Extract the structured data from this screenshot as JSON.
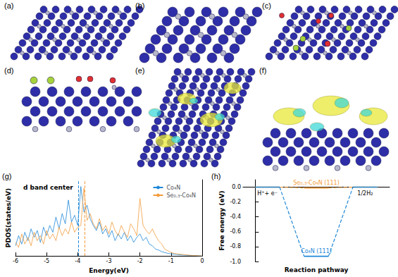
{
  "panels": [
    "(a)",
    "(b)",
    "(c)",
    "(d)",
    "(e)",
    "(f)",
    "(g)",
    "(h)"
  ],
  "chart_data": [
    {
      "type": "line",
      "title": "d band center",
      "xlabel": "Energy(eV)",
      "ylabel": "PDOS(states/eV)",
      "x": [
        -6.0,
        -5.9,
        -5.8,
        -5.7,
        -5.6,
        -5.5,
        -5.4,
        -5.3,
        -5.2,
        -5.1,
        -5.0,
        -4.9,
        -4.8,
        -4.7,
        -4.6,
        -4.5,
        -4.4,
        -4.3,
        -4.2,
        -4.1,
        -4.0,
        -3.9,
        -3.8,
        -3.7,
        -3.6,
        -3.5,
        -3.4,
        -3.3,
        -3.2,
        -3.1,
        -3.0,
        -2.9,
        -2.8,
        -2.7,
        -2.6,
        -2.5,
        -2.4,
        -2.3,
        -2.2,
        -2.1,
        -2.0,
        -1.9,
        -1.8,
        -1.7,
        -1.6,
        -1.5,
        -1.4,
        -1.3,
        -1.2,
        -1.1,
        -1.0,
        -0.9,
        -0.8,
        -0.7,
        -0.6,
        -0.5,
        -0.4,
        -0.3,
        -0.2,
        -0.1,
        0.0
      ],
      "series": [
        {
          "name": "Co₄N",
          "color": "#1e88d8",
          "d_band_center": -3.98,
          "values": [
            60,
            120,
            70,
            140,
            90,
            160,
            110,
            150,
            80,
            170,
            120,
            180,
            140,
            230,
            160,
            250,
            190,
            330,
            200,
            240,
            180,
            410,
            260,
            300,
            220,
            180,
            150,
            200,
            130,
            160,
            110,
            150,
            90,
            130,
            100,
            140,
            90,
            120,
            80,
            110,
            130,
            90,
            110,
            70,
            60,
            40,
            35,
            25,
            20,
            15,
            12,
            10,
            8,
            6,
            5,
            4,
            3,
            2,
            2,
            1,
            0
          ]
        },
        {
          "name": "Se₀.₃-Co₄N",
          "color": "#f39c3d",
          "d_band_center": -3.78,
          "values": [
            80,
            50,
            130,
            70,
            110,
            60,
            140,
            90,
            120,
            70,
            150,
            100,
            130,
            90,
            170,
            120,
            160,
            130,
            200,
            140,
            170,
            180,
            400,
            210,
            250,
            190,
            160,
            220,
            150,
            180,
            130,
            200,
            150,
            120,
            180,
            140,
            110,
            190,
            160,
            120,
            340,
            180,
            150,
            130,
            160,
            120,
            90,
            70,
            40,
            30,
            20,
            15,
            12,
            10,
            8,
            6,
            4,
            3,
            2,
            1,
            0
          ]
        }
      ],
      "xlim": [
        -6,
        0
      ],
      "xticks": [
        -6,
        -5,
        -4,
        -3,
        -2,
        -1,
        0
      ],
      "ylim": [
        0,
        450
      ],
      "tick_labels": "x",
      "legend": "upper right"
    },
    {
      "type": "step",
      "xlabel": "Reaction pathway",
      "ylabel": "Free energy (eV)",
      "categories": [
        "H⁺+ e⁻",
        null,
        "1/2H₂"
      ],
      "series": [
        {
          "name": "Se₀.₃-Co₄N (111)",
          "color": "#f39c3d",
          "values": [
            0,
            -0.01,
            0
          ],
          "line_style": "dashed"
        },
        {
          "name": "Co₄N (111)",
          "color": "#1e88d8",
          "values": [
            0,
            -0.93,
            0
          ],
          "line_style": "dashed"
        }
      ],
      "ylim": [
        -1.0,
        0.1
      ],
      "yticks": [
        {
          "value": 0,
          "label": "0.0"
        },
        -0.2,
        -0.4,
        -0.6,
        -0.8,
        {
          "value": -1,
          "label": "-1.0"
        }
      ],
      "tick_labels": "y"
    }
  ]
}
